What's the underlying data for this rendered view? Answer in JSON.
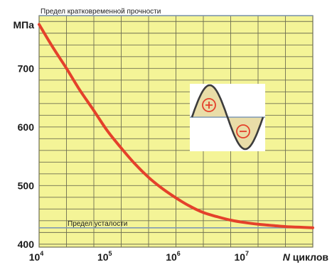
{
  "colors": {
    "plot_background": "#f4f497",
    "grid": "#6f6f52",
    "curve": "#e4412b",
    "reference_lines": "#7f99b3",
    "inset_background": "#ffffff",
    "inset_fill": "#e9dda8",
    "inset_wave": "#3c3c3c",
    "inset_sign": "#e4412b"
  },
  "icons": {
    "inset": "sinusoidal-stress-cycle-icon",
    "plus": "plus-in-circle",
    "minus": "minus-in-circle"
  },
  "chart_data": {
    "type": "line",
    "title": "",
    "xscale": "log",
    "xlim": [
      10000,
      100000000
    ],
    "ylim": [
      395,
      790
    ],
    "x_ticks": [
      {
        "value": 10000,
        "base": "10",
        "exp": "4"
      },
      {
        "value": 100000,
        "base": "10",
        "exp": "5"
      },
      {
        "value": 1000000,
        "base": "10",
        "exp": "6"
      },
      {
        "value": 10000000,
        "base": "10",
        "exp": "7"
      }
    ],
    "x_label": {
      "italic": "N",
      "rest": " циклов"
    },
    "y_ticks": [
      400,
      500,
      600,
      700
    ],
    "y_unit": "МПа",
    "grid": true,
    "reference_lines": [
      {
        "label": "Предел кратковременной прочности",
        "y": 790
      },
      {
        "label": "Предел усталости",
        "y": 428
      }
    ],
    "series": [
      {
        "x": [
          10000,
          15850,
          25120,
          39810,
          63100,
          100000,
          158500,
          251200,
          398100,
          631000,
          1000000,
          1585000,
          2512000,
          3981000,
          6310000,
          10000000,
          15850000,
          25120000,
          39810000,
          63100000,
          100000000
        ],
        "y": [
          775,
          736,
          700,
          662,
          628,
          593,
          564,
          537,
          514,
          495,
          479,
          465,
          454,
          447,
          441,
          437,
          434,
          432,
          430,
          429,
          428
        ]
      }
    ]
  }
}
